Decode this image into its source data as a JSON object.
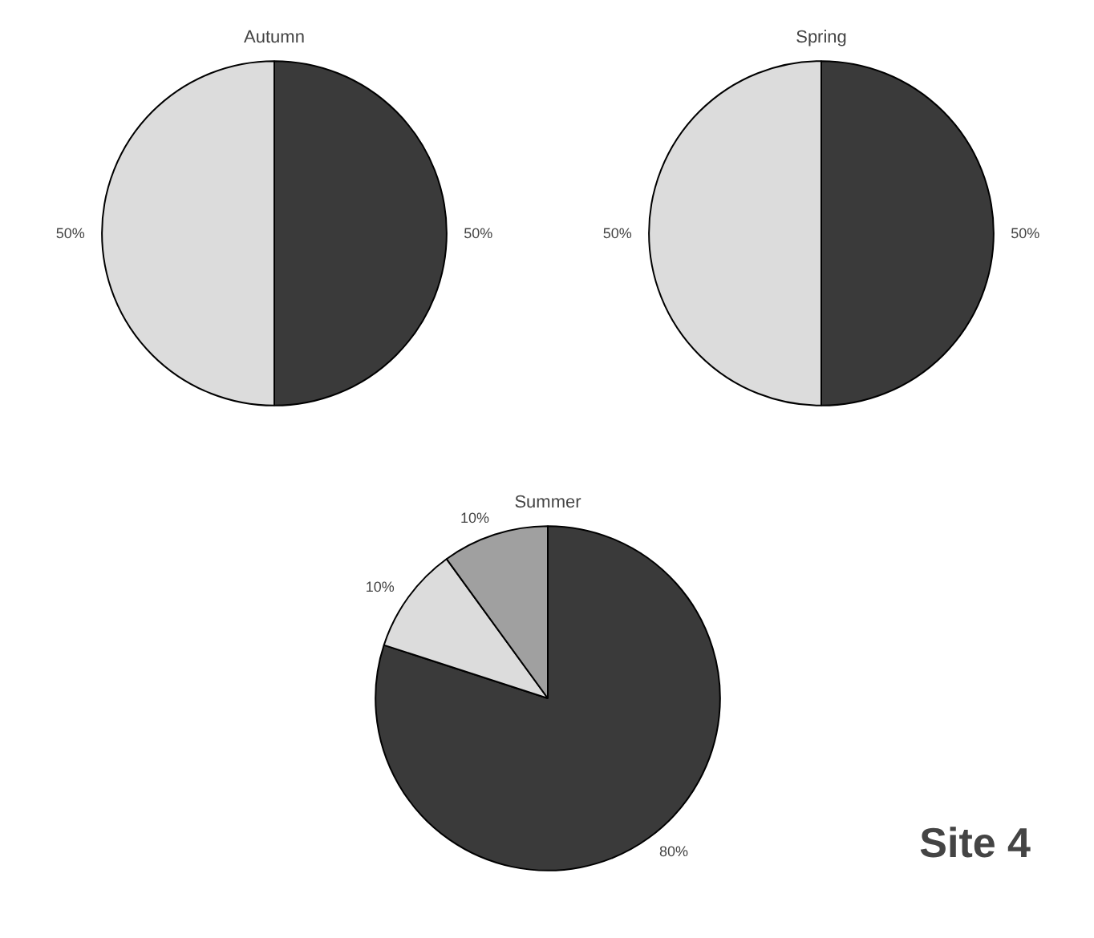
{
  "chart_data": [
    {
      "type": "pie",
      "title": "Autumn",
      "categories": [
        null,
        null
      ],
      "values": [
        50,
        50
      ],
      "colors": [
        "#3a3a3a",
        "#dcdcdc"
      ],
      "value_labels": [
        "50%",
        "50%"
      ]
    },
    {
      "type": "pie",
      "title": "Spring",
      "categories": [
        null,
        null
      ],
      "values": [
        50,
        50
      ],
      "colors": [
        "#3a3a3a",
        "#dcdcdc"
      ],
      "value_labels": [
        "50%",
        "50%"
      ]
    },
    {
      "type": "pie",
      "title": "Summer",
      "categories": [
        null,
        null,
        null
      ],
      "values": [
        80,
        10,
        10
      ],
      "colors": [
        "#3a3a3a",
        "#dcdcdc",
        "#a0a0a0"
      ],
      "value_labels": [
        "80%",
        "10%",
        "10%"
      ],
      "annotations": [
        "Site 4"
      ]
    }
  ]
}
